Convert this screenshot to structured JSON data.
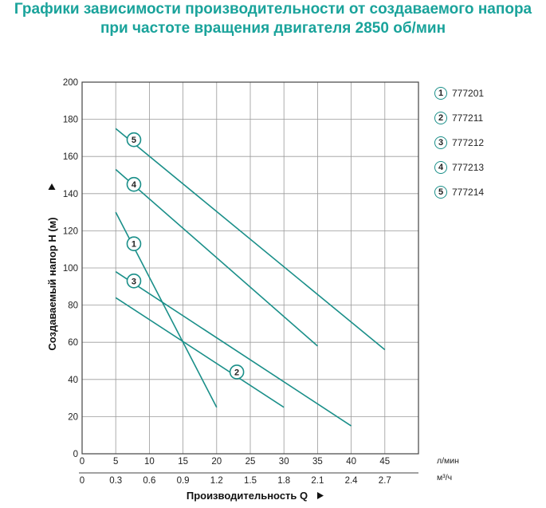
{
  "title_lines": [
    "Графики зависимости производительности от создаваемого напора",
    "при частоте вращения двигателя 2850 об/мин"
  ],
  "chart_data": {
    "type": "line",
    "title": "Графики зависимости производительности от создаваемого напора при частоте вращения двигателя 2850 об/мин",
    "xlabel": "Производительность Q",
    "ylabel": "Создаваемый напор H (м)",
    "x_unit_primary": "л/мин",
    "x_unit_secondary": "м³/ч",
    "xlim": [
      0,
      50
    ],
    "ylim": [
      0,
      200
    ],
    "x_ticks": [
      "0",
      "5",
      "10",
      "15",
      "20",
      "25",
      "30",
      "35",
      "40",
      "45"
    ],
    "x_ticks_secondary": [
      "0",
      "0.3",
      "0.6",
      "0.9",
      "1.2",
      "1.5",
      "1.8",
      "2.1",
      "2.4",
      "2.7"
    ],
    "y_ticks": [
      "0",
      "20",
      "40",
      "60",
      "80",
      "100",
      "120",
      "140",
      "160",
      "180",
      "200"
    ],
    "grid": true,
    "line_color": "#1a8f89",
    "series": [
      {
        "name": "777201",
        "marker": "1",
        "x": [
          5,
          20
        ],
        "y": [
          130,
          25
        ],
        "label_at": [
          7.7,
          113
        ]
      },
      {
        "name": "777211",
        "marker": "2",
        "x": [
          5,
          30
        ],
        "y": [
          84,
          25
        ],
        "label_at": [
          23,
          44
        ]
      },
      {
        "name": "777212",
        "marker": "3",
        "x": [
          5,
          40
        ],
        "y": [
          98,
          15
        ],
        "label_at": [
          7.7,
          93
        ]
      },
      {
        "name": "777213",
        "marker": "4",
        "x": [
          5,
          35
        ],
        "y": [
          153,
          58
        ],
        "label_at": [
          7.7,
          145
        ]
      },
      {
        "name": "777214",
        "marker": "5",
        "x": [
          5,
          45
        ],
        "y": [
          175,
          56
        ],
        "label_at": [
          7.7,
          169
        ]
      }
    ]
  }
}
